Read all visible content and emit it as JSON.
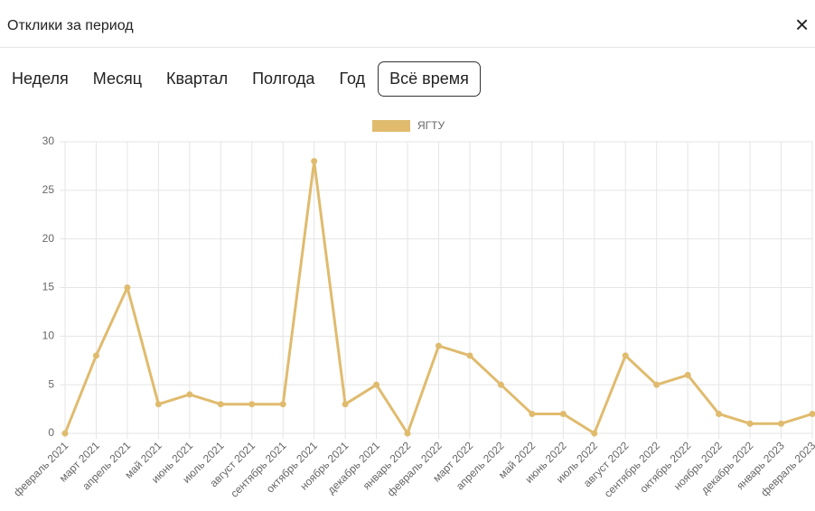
{
  "header": {
    "title": "Отклики за период",
    "close": "×"
  },
  "tabs": [
    "Неделя",
    "Месяц",
    "Квартал",
    "Полгода",
    "Год",
    "Всё время"
  ],
  "chart_data": {
    "type": "line",
    "categories": [
      "февраль 2021",
      "март 2021",
      "апрель 2021",
      "май 2021",
      "июнь 2021",
      "июль 2021",
      "август 2021",
      "сентябрь 2021",
      "октябрь 2021",
      "ноябрь 2021",
      "декабрь 2021",
      "январь 2022",
      "февраль 2022",
      "март 2022",
      "апрель 2022",
      "май 2022",
      "июнь 2022",
      "июль 2022",
      "август 2022",
      "сентябрь 2022",
      "октябрь 2022",
      "ноябрь 2022",
      "декабрь 2022",
      "январь 2023",
      "февраль 2023"
    ],
    "series": [
      {
        "name": "ЯГТУ",
        "color": "#e0bb6e",
        "values": [
          0,
          8,
          15,
          3,
          4,
          3,
          3,
          3,
          28,
          3,
          5,
          0,
          9,
          8,
          5,
          2,
          2,
          0,
          8,
          5,
          6,
          2,
          1,
          1,
          2
        ]
      }
    ],
    "ylim": [
      0,
      30
    ],
    "yticks": [
      0,
      5,
      10,
      15,
      20,
      25,
      30
    ],
    "grid": true,
    "legend": "top"
  }
}
